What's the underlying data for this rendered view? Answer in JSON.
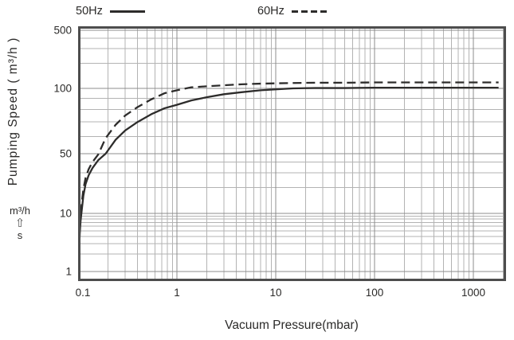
{
  "page": {
    "background": "#ffffff",
    "text_color": "#2b2a29"
  },
  "chart_data": {
    "type": "line",
    "title": "",
    "xlabel": "Vacuum Pressure(mbar)",
    "ylabel": "Pumping Speed ( m³/h )",
    "x_scale": "log",
    "y_scale": "log",
    "x_range": [
      0.1,
      2100
    ],
    "y_range": [
      0.7,
      550
    ],
    "grid": "on",
    "legend_position": "top",
    "x_ticks": [
      0.1,
      1,
      10,
      100,
      1000
    ],
    "x_tick_labels": [
      "0.1",
      "1",
      "10",
      "100",
      "1000"
    ],
    "y_ticks": [
      1,
      10,
      50,
      100,
      500
    ],
    "y_tick_labels": [
      "1",
      "10",
      "50",
      "100",
      "500"
    ],
    "x_minor_per_decade": [
      2,
      3,
      4,
      5,
      6,
      7,
      8,
      9
    ],
    "y_minor": [
      2,
      3,
      4,
      5,
      6,
      7,
      8,
      9,
      20,
      30,
      40,
      60,
      70,
      80,
      90,
      200,
      300,
      400
    ],
    "colors": {
      "line": "#2d2c2b",
      "grid_minor": "#b3b3b3",
      "grid_major": "#8c8c8c",
      "border": "#4d4d4d"
    },
    "legend": [
      {
        "name": "50Hz",
        "line": "solid"
      },
      {
        "name": "60Hz",
        "line": "dashed"
      }
    ],
    "unit_note": {
      "top": "m³/h",
      "arrow": "⇧",
      "bottom": "s"
    },
    "series": [
      {
        "name": "50Hz",
        "style": "solid",
        "points": [
          [
            0.101,
            0.7
          ],
          [
            0.102,
            2
          ],
          [
            0.104,
            4.5
          ],
          [
            0.106,
            7.5
          ],
          [
            0.109,
            11
          ],
          [
            0.113,
            16
          ],
          [
            0.119,
            22
          ],
          [
            0.128,
            28
          ],
          [
            0.14,
            34
          ],
          [
            0.16,
            42
          ],
          [
            0.19,
            50
          ],
          [
            0.24,
            58
          ],
          [
            0.3,
            64
          ],
          [
            0.4,
            70
          ],
          [
            0.55,
            76
          ],
          [
            0.75,
            81
          ],
          [
            1,
            84
          ],
          [
            1.4,
            88
          ],
          [
            2,
            91
          ],
          [
            3,
            94
          ],
          [
            4.5,
            96
          ],
          [
            7,
            98
          ],
          [
            10,
            99
          ],
          [
            15,
            100
          ],
          [
            25,
            101
          ],
          [
            50,
            101
          ],
          [
            100,
            102
          ],
          [
            250,
            102
          ],
          [
            500,
            102
          ],
          [
            1000,
            102
          ],
          [
            1800,
            102
          ]
        ]
      },
      {
        "name": "60Hz",
        "style": "dashed",
        "points": [
          [
            0.101,
            0.7
          ],
          [
            0.102,
            2.4
          ],
          [
            0.104,
            5.5
          ],
          [
            0.106,
            9
          ],
          [
            0.109,
            13.5
          ],
          [
            0.113,
            19
          ],
          [
            0.119,
            26
          ],
          [
            0.128,
            33
          ],
          [
            0.14,
            40
          ],
          [
            0.16,
            49
          ],
          [
            0.19,
            59
          ],
          [
            0.24,
            68
          ],
          [
            0.3,
            75
          ],
          [
            0.4,
            82
          ],
          [
            0.55,
            89
          ],
          [
            0.75,
            95
          ],
          [
            1,
            98
          ],
          [
            1.4,
            103
          ],
          [
            2,
            106
          ],
          [
            3,
            109
          ],
          [
            4.5,
            112
          ],
          [
            7,
            114
          ],
          [
            10,
            115
          ],
          [
            15,
            116
          ],
          [
            25,
            117
          ],
          [
            50,
            117
          ],
          [
            100,
            118
          ],
          [
            250,
            118
          ],
          [
            500,
            118
          ],
          [
            1000,
            118
          ],
          [
            1800,
            118
          ]
        ]
      }
    ]
  }
}
